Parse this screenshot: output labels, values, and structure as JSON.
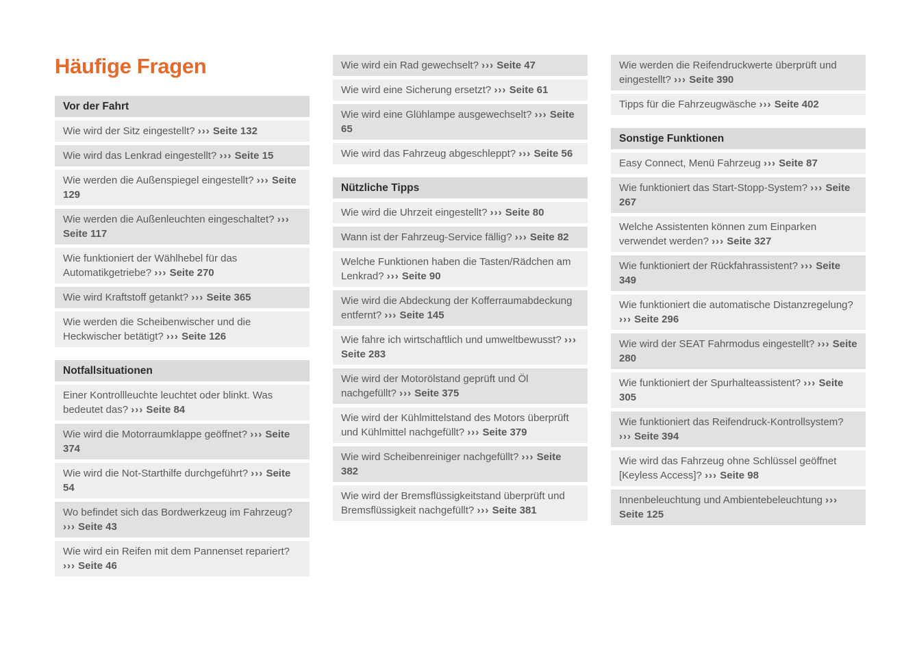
{
  "title": "Häufige Fragen",
  "reference": {
    "symbol": "›››",
    "page_word": "Seite"
  },
  "colors": {
    "accent": "#E5692B",
    "header_bg": "#DBDBDC",
    "row_light": "#EEEEEF",
    "row_dark": "#E1E1E2",
    "header_text": "#2C2C2E",
    "item_text": "#58595B"
  },
  "columns": [
    {
      "blocks": [
        {
          "type": "header",
          "text": "Vor der Fahrt"
        },
        {
          "type": "items",
          "shade_offset": 0,
          "items": [
            {
              "q": "Wie wird der Sitz eingestellt?",
              "page": "132"
            },
            {
              "q": "Wie wird das Lenkrad eingestellt?",
              "page": "15"
            },
            {
              "q": "Wie werden die Außenspiegel eingestellt?",
              "page": "129"
            },
            {
              "q": "Wie werden die Außenleuchten eingeschaltet?",
              "page": "117"
            },
            {
              "q": "Wie funktioniert der Wählhebel für das Automatikgetriebe?",
              "page": "270"
            },
            {
              "q": "Wie wird Kraftstoff getankt?",
              "page": "365"
            },
            {
              "q": "Wie werden die Scheibenwischer und die Heckwischer betätigt?",
              "page": "126"
            }
          ]
        },
        {
          "type": "header",
          "text": "Notfallsituationen"
        },
        {
          "type": "items",
          "shade_offset": 0,
          "items": [
            {
              "q": "Einer Kontrollleuchte leuchtet oder blinkt. Was bedeutet das?",
              "page": "84"
            },
            {
              "q": "Wie wird die Motorraumklappe geöffnet?",
              "page": "374"
            },
            {
              "q": "Wie wird die Not-Starthilfe durchgeführt?",
              "page": "54"
            },
            {
              "q": "Wo befindet sich das Bordwerkzeug im Fahrzeug?",
              "page": "43"
            },
            {
              "q": "Wie wird ein Reifen mit dem Pannenset repariert?",
              "page": "46"
            }
          ]
        }
      ]
    },
    {
      "blocks": [
        {
          "type": "items",
          "shade_offset": 1,
          "items": [
            {
              "q": "Wie wird ein Rad gewechselt?",
              "page": "47"
            },
            {
              "q": "Wie wird eine Sicherung ersetzt?",
              "page": "61"
            },
            {
              "q": "Wie wird eine Glühlampe ausgewechselt?",
              "page": "65"
            },
            {
              "q": "Wie wird das Fahrzeug abgeschleppt?",
              "page": "56"
            }
          ]
        },
        {
          "type": "header",
          "text": "Nützliche Tipps"
        },
        {
          "type": "items",
          "shade_offset": 0,
          "items": [
            {
              "q": "Wie wird die Uhrzeit eingestellt?",
              "page": "80"
            },
            {
              "q": "Wann ist der Fahrzeug-Service fällig?",
              "page": "82"
            },
            {
              "q": "Welche Funktionen haben die Tasten/Rädchen am Lenkrad?",
              "page": "90"
            },
            {
              "q": "Wie wird die Abdeckung der Kofferraumabdeckung entfernt?",
              "page": "145"
            },
            {
              "q": "Wie fahre ich wirtschaftlich und umweltbewusst?",
              "page": "283"
            },
            {
              "q": "Wie wird der Motorölstand geprüft und Öl nachgefüllt?",
              "page": "375"
            },
            {
              "q": "Wie wird der Kühlmittelstand des Motors überprüft und Kühlmittel nachgefüllt?",
              "page": "379"
            },
            {
              "q": "Wie wird Scheibenreiniger nachgefüllt?",
              "page": "382"
            },
            {
              "q": "Wie wird der Bremsflüssigkeitstand überprüft und Bremsflüssigkeit nachgefüllt?",
              "page": "381"
            }
          ]
        }
      ]
    },
    {
      "blocks": [
        {
          "type": "items",
          "shade_offset": 1,
          "items": [
            {
              "q": "Wie werden die Reifendruckwerte überprüft und eingestellt?",
              "page": "390"
            },
            {
              "q": "Tipps für die Fahrzeugwäsche",
              "page": "402"
            }
          ]
        },
        {
          "type": "header",
          "text": "Sonstige Funktionen"
        },
        {
          "type": "items",
          "shade_offset": 0,
          "items": [
            {
              "q": "Easy Connect, Menü Fahrzeug",
              "page": "87"
            },
            {
              "q": "Wie funktioniert das Start-Stopp-System?",
              "page": "267"
            },
            {
              "q": "Welche Assistenten können zum Einparken verwendet werden?",
              "page": "327"
            },
            {
              "q": "Wie funktioniert der Rückfahrassistent?",
              "page": "349"
            },
            {
              "q": "Wie funktioniert die automatische Distanzregelung?",
              "page": "296"
            },
            {
              "q": "Wie wird der SEAT Fahrmodus eingestellt?",
              "page": "280"
            },
            {
              "q": "Wie funktioniert der Spurhalteassistent?",
              "page": "305"
            },
            {
              "q": "Wie funktioniert das Reifendruck-Kontrollsystem?",
              "page": "394"
            },
            {
              "q": "Wie wird das Fahrzeug ohne Schlüssel geöffnet [Keyless Access]?",
              "page": "98"
            },
            {
              "q": "Innenbeleuchtung und Ambientebeleuchtung",
              "page": "125"
            }
          ]
        }
      ]
    }
  ]
}
